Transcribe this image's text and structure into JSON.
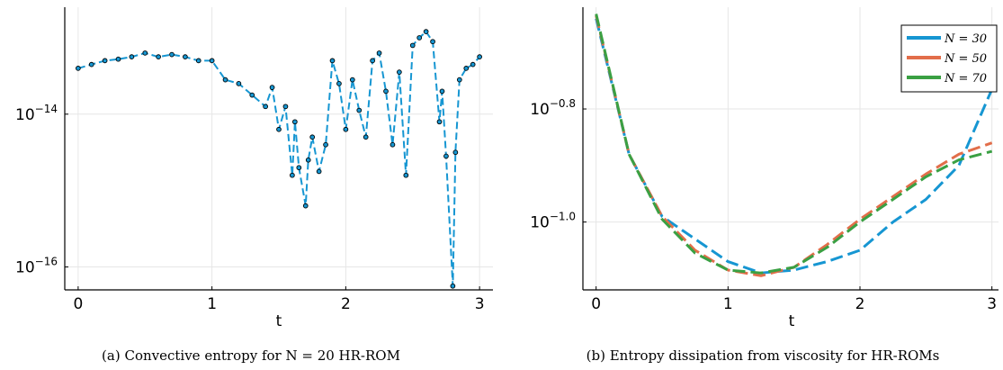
{
  "chart_data": [
    {
      "type": "scatter",
      "caption": "(a) Convective entropy for N = 20 HR-ROM",
      "xlabel": "t",
      "yscale": "log",
      "xlim": [
        -0.1,
        3.1
      ],
      "ylim_log10": [
        -16.3,
        -12.6
      ],
      "xticks": [
        0,
        1,
        2,
        3
      ],
      "yticks": [
        {
          "base": "10",
          "exp": "−14",
          "log10": -14
        },
        {
          "base": "10",
          "exp": "−16",
          "log10": -16
        }
      ],
      "grid": true,
      "legend": false,
      "marker_color": "#1696d2",
      "line_style": "dashed",
      "series": [
        {
          "x": [
            0,
            0.1,
            0.2,
            0.3,
            0.4,
            0.5,
            0.6,
            0.7,
            0.8,
            0.9,
            1.0,
            1.1,
            1.2,
            1.3,
            1.4,
            1.45,
            1.5,
            1.55,
            1.6,
            1.62,
            1.65,
            1.7,
            1.72,
            1.75,
            1.8,
            1.85,
            1.9,
            1.95,
            2.0,
            2.05,
            2.1,
            2.15,
            2.2,
            2.25,
            2.3,
            2.35,
            2.4,
            2.45,
            2.5,
            2.55,
            2.6,
            2.65,
            2.7,
            2.72,
            2.75,
            2.8,
            2.82,
            2.85,
            2.9,
            2.95,
            3.0
          ],
          "log10_y": [
            -13.4,
            -13.35,
            -13.3,
            -13.28,
            -13.25,
            -13.2,
            -13.25,
            -13.22,
            -13.25,
            -13.3,
            -13.3,
            -13.55,
            -13.6,
            -13.75,
            -13.9,
            -13.65,
            -14.2,
            -13.9,
            -14.8,
            -14.1,
            -14.7,
            -15.2,
            -14.6,
            -14.3,
            -14.75,
            -14.4,
            -13.3,
            -13.6,
            -14.2,
            -13.55,
            -13.95,
            -14.3,
            -13.3,
            -13.2,
            -13.7,
            -14.4,
            -13.45,
            -14.8,
            -13.1,
            -13.0,
            -12.92,
            -13.05,
            -14.1,
            -13.7,
            -14.55,
            -16.25,
            -14.5,
            -13.55,
            -13.4,
            -13.35,
            -13.25
          ]
        }
      ]
    },
    {
      "type": "line",
      "caption": "(b) Entropy dissipation from viscosity for HR-ROMs",
      "xlabel": "t",
      "yscale": "log",
      "xlim": [
        -0.1,
        3.05
      ],
      "ylim_log10": [
        -1.12,
        -0.62
      ],
      "xticks": [
        0,
        1,
        2,
        3
      ],
      "yticks": [
        {
          "base": "10",
          "exp": "−0.8",
          "log10": -0.8
        },
        {
          "base": "10",
          "exp": "−1.0",
          "log10": -1.0
        }
      ],
      "grid": true,
      "legend_position": "top-right",
      "series": [
        {
          "name": "N = 30",
          "color": "#1696d2",
          "x": [
            0,
            0.25,
            0.5,
            0.75,
            1.0,
            1.25,
            1.5,
            1.75,
            2.0,
            2.25,
            2.5,
            2.75,
            3.0
          ],
          "log10_y": [
            -0.64,
            -0.88,
            -0.99,
            -1.03,
            -1.07,
            -1.09,
            -1.085,
            -1.07,
            -1.05,
            -1.0,
            -0.96,
            -0.9,
            -0.765
          ]
        },
        {
          "name": "N = 50",
          "color": "#e26e4a",
          "x": [
            0,
            0.25,
            0.5,
            0.75,
            1.0,
            1.25,
            1.5,
            1.75,
            2.0,
            2.25,
            2.5,
            2.75,
            3.0
          ],
          "log10_y": [
            -0.635,
            -0.88,
            -0.99,
            -1.05,
            -1.085,
            -1.095,
            -1.08,
            -1.04,
            -0.995,
            -0.955,
            -0.915,
            -0.88,
            -0.86
          ]
        },
        {
          "name": "N = 70",
          "color": "#3aa043",
          "x": [
            0,
            0.25,
            0.5,
            0.75,
            1.0,
            1.25,
            1.5,
            1.75,
            2.0,
            2.25,
            2.5,
            2.75,
            3.0
          ],
          "log10_y": [
            -0.632,
            -0.88,
            -0.995,
            -1.055,
            -1.085,
            -1.09,
            -1.08,
            -1.045,
            -1.0,
            -0.96,
            -0.92,
            -0.89,
            -0.875
          ]
        }
      ]
    }
  ]
}
